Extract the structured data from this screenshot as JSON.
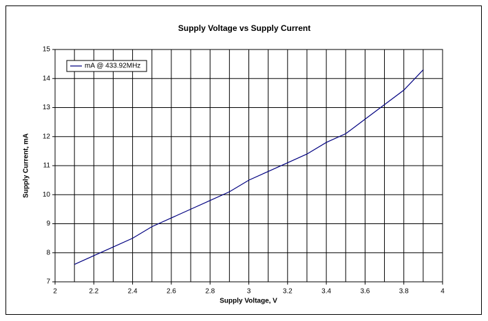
{
  "chart_data": {
    "type": "line",
    "title": "Supply Voltage vs Supply Current",
    "xlabel": "Supply Voltage, V",
    "ylabel": "Supply Current, mA",
    "x": [
      2.1,
      2.2,
      2.3,
      2.4,
      2.5,
      2.6,
      2.7,
      2.8,
      2.9,
      3.0,
      3.1,
      3.2,
      3.3,
      3.4,
      3.5,
      3.6,
      3.7,
      3.8,
      3.9
    ],
    "series": [
      {
        "name": "mA @ 433.92MHz",
        "color": "#000080",
        "values": [
          7.6,
          7.9,
          8.2,
          8.5,
          8.9,
          9.2,
          9.5,
          9.8,
          10.1,
          10.5,
          10.8,
          11.1,
          11.4,
          11.8,
          12.1,
          12.6,
          13.1,
          13.6,
          14.3
        ]
      }
    ],
    "xlim": [
      2,
      4
    ],
    "xticks": [
      2,
      2.2,
      2.4,
      2.6,
      2.8,
      3,
      3.2,
      3.4,
      3.6,
      3.8,
      4
    ],
    "xminorticks": [
      2.1,
      2.3,
      2.5,
      2.7,
      2.9,
      3.1,
      3.3,
      3.5,
      3.7,
      3.9
    ],
    "ylim": [
      7,
      15
    ],
    "yticks": [
      7,
      8,
      9,
      10,
      11,
      12,
      13,
      14,
      15
    ],
    "grid": true,
    "legend": "upper left"
  }
}
